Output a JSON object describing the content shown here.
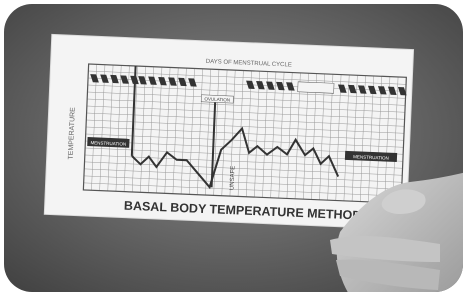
{
  "photo": {
    "card": {
      "axis_title": "DAYS OF MENSTRUAL CYCLE",
      "y_axis_title": "TEMPERATURE",
      "left_label": "MENSTRUATION",
      "ovulation_label": "OVULATION",
      "unsafe_label": "UNSAFE",
      "right_label": "MENSTRUATION",
      "title": "BASAL BODY TEMPERATURE METHOD"
    }
  }
}
